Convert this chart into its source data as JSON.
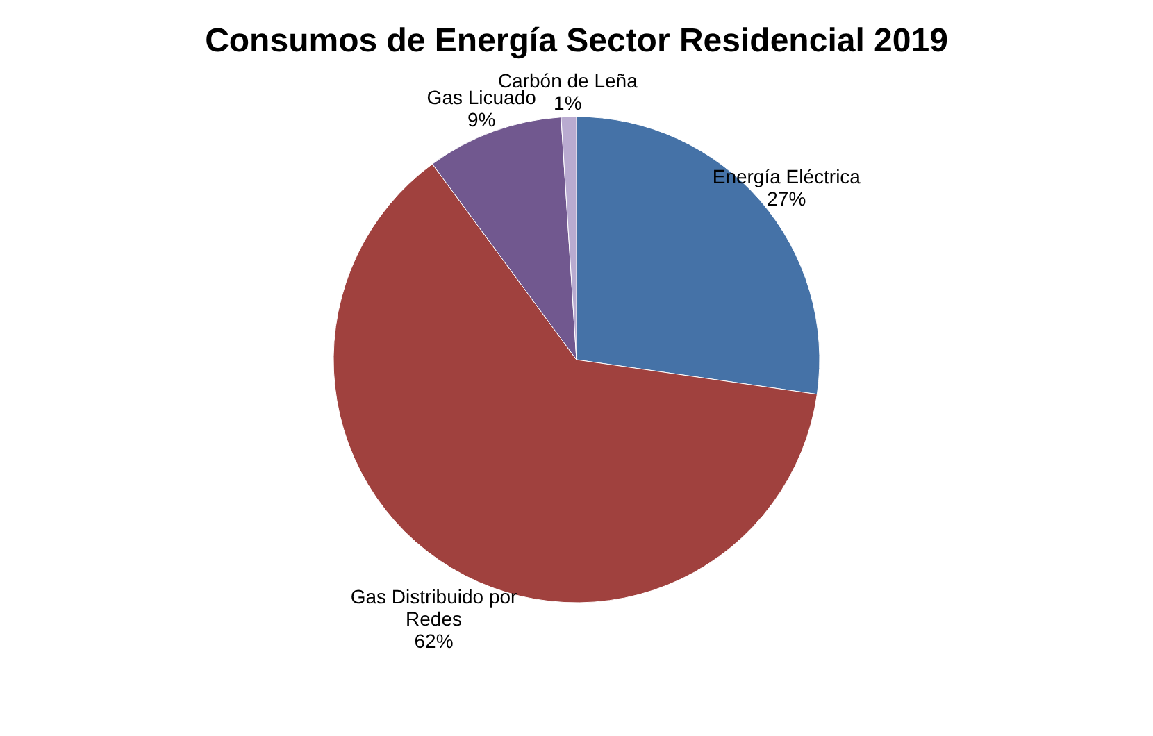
{
  "chart_data": {
    "type": "pie",
    "title": "Consumos de Energía Sector Residencial 2019",
    "categories": [
      "Energía Eléctrica",
      "Gas Distribuido por Redes",
      "Gas Licuado",
      "Carbón de Leña"
    ],
    "values": [
      27,
      62,
      9,
      1
    ],
    "colors": [
      "#4572a7",
      "#a0413e",
      "#71588f",
      "#b9abd0"
    ],
    "value_labels": [
      "27%",
      "62%",
      "9%",
      "1%"
    ]
  }
}
